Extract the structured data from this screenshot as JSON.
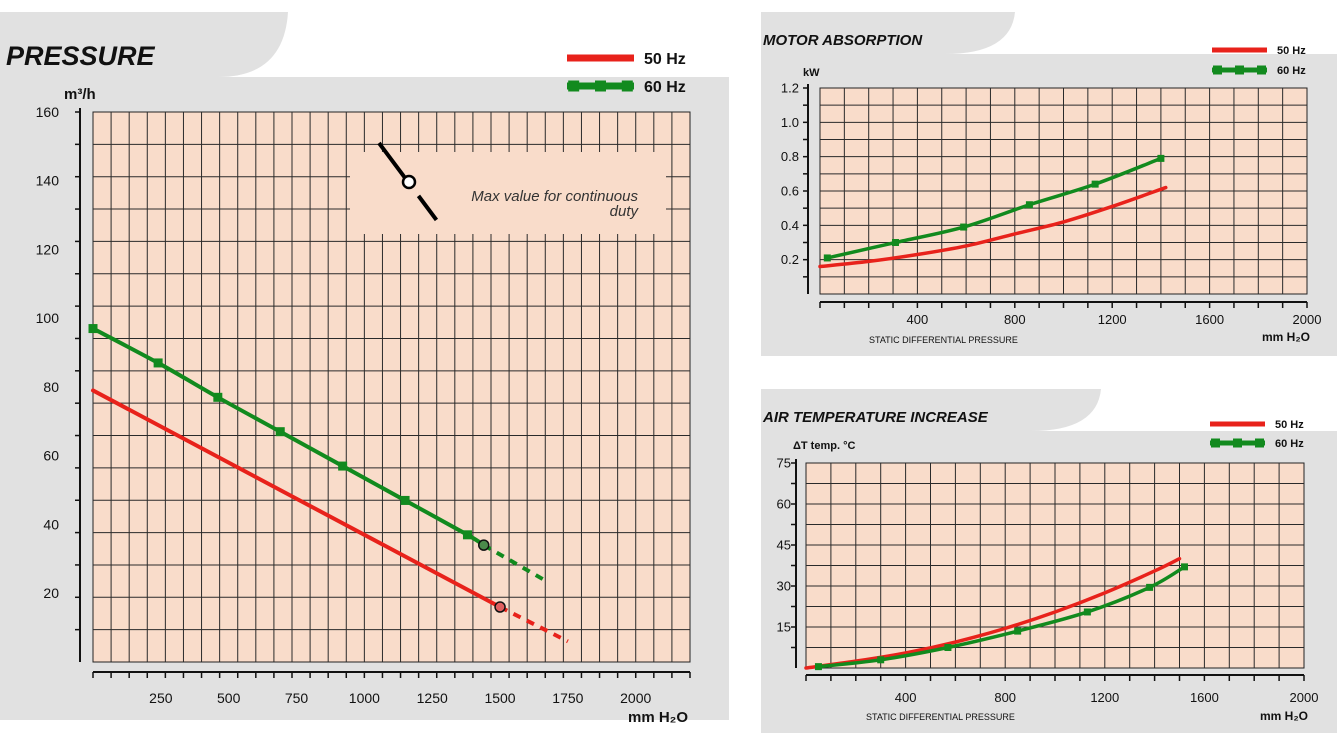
{
  "chart_data": [
    {
      "id": "pressure",
      "type": "line",
      "title": "PRESSURE",
      "ylabel": "m³/h",
      "xlabel": "mm H₂O",
      "xlim": [
        0,
        2200
      ],
      "ylim": [
        0,
        160
      ],
      "x_ticks": [
        250,
        500,
        750,
        1000,
        1250,
        1500,
        1750,
        2000
      ],
      "y_ticks": [
        20,
        40,
        60,
        80,
        100,
        120,
        140,
        160
      ],
      "grid": true,
      "legend": "top-right",
      "annotation": {
        "line1": "Max value for continuous",
        "line2": "duty"
      },
      "series": [
        {
          "name": "50 Hz",
          "color": "#e8221b",
          "markers": false,
          "values": [
            [
              0,
              79
            ],
            [
              1500,
              16
            ]
          ],
          "dashed": [
            [
              1500,
              16
            ],
            [
              1750,
              6
            ]
          ],
          "end_point": [
            1500,
            16
          ],
          "end_fill": "#e06060"
        },
        {
          "name": "60 Hz",
          "color": "#128a1e",
          "markers": true,
          "values": [
            [
              0,
              97
            ],
            [
              240,
              87
            ],
            [
              460,
              77
            ],
            [
              690,
              67
            ],
            [
              920,
              57
            ],
            [
              1150,
              47
            ],
            [
              1380,
              37
            ],
            [
              1440,
              34
            ]
          ],
          "dashed": [
            [
              1440,
              34
            ],
            [
              1660,
              24
            ]
          ],
          "end_point": [
            1440,
            34
          ],
          "end_fill": "#4b8a4b"
        }
      ]
    },
    {
      "id": "motor",
      "type": "line",
      "title": "MOTOR ABSORPTION",
      "ylabel": "kW",
      "xlabel": "mm H₂O",
      "subtitle": "STATIC DIFFERENTIAL PRESSURE",
      "xlim": [
        0,
        2000
      ],
      "ylim": [
        0,
        1.2
      ],
      "x_ticks": [
        400,
        800,
        1200,
        1600,
        2000
      ],
      "y_ticks": [
        0.2,
        0.4,
        0.6,
        0.8,
        1.0,
        1.2
      ],
      "grid": true,
      "legend": "top-right",
      "series": [
        {
          "name": "50 Hz",
          "color": "#e8221b",
          "markers": false,
          "values": [
            [
              0,
              0.16
            ],
            [
              200,
              0.19
            ],
            [
              400,
              0.23
            ],
            [
              600,
              0.28
            ],
            [
              800,
              0.35
            ],
            [
              1000,
              0.42
            ],
            [
              1200,
              0.51
            ],
            [
              1420,
              0.62
            ]
          ]
        },
        {
          "name": "60 Hz",
          "color": "#128a1e",
          "markers": true,
          "values": [
            [
              30,
              0.21
            ],
            [
              310,
              0.3
            ],
            [
              590,
              0.39
            ],
            [
              860,
              0.52
            ],
            [
              1130,
              0.64
            ],
            [
              1400,
              0.79
            ]
          ]
        }
      ]
    },
    {
      "id": "airtemp",
      "type": "line",
      "title": "AIR TEMPERATURE INCREASE",
      "ylabel": "ΔT  temp. °C",
      "xlabel": "mm H₂O",
      "subtitle": "STATIC DIFFERENTIAL PRESSURE",
      "xlim": [
        0,
        2000
      ],
      "ylim": [
        0,
        75
      ],
      "x_ticks": [
        400,
        800,
        1200,
        1600,
        2000
      ],
      "y_ticks": [
        15,
        30,
        45,
        60,
        75
      ],
      "grid": true,
      "legend": "top-right",
      "series": [
        {
          "name": "50 Hz",
          "color": "#e8221b",
          "markers": false,
          "values": [
            [
              0,
              0
            ],
            [
              200,
              2.5
            ],
            [
              400,
              5.5
            ],
            [
              600,
              9.5
            ],
            [
              800,
              14.5
            ],
            [
              1000,
              20.5
            ],
            [
              1200,
              27.5
            ],
            [
              1400,
              35.5
            ],
            [
              1500,
              40
            ]
          ]
        },
        {
          "name": "60 Hz",
          "color": "#128a1e",
          "markers": true,
          "values": [
            [
              50,
              0.5
            ],
            [
              300,
              3
            ],
            [
              570,
              7.5
            ],
            [
              850,
              13.5
            ],
            [
              1130,
              20.5
            ],
            [
              1380,
              29.5
            ],
            [
              1520,
              37
            ]
          ]
        }
      ]
    }
  ]
}
